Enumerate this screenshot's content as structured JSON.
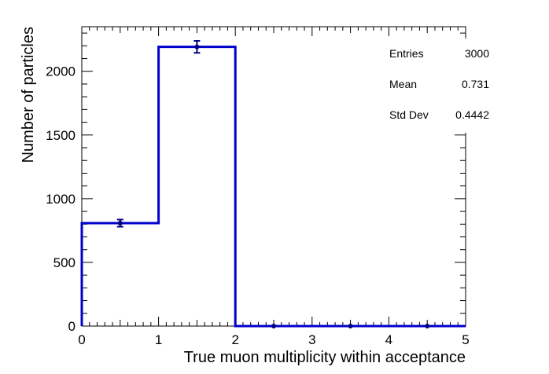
{
  "chart_data": {
    "type": "bar",
    "xlabel": "True muon multiplicity within acceptance",
    "ylabel": "Number of particles",
    "xlim": [
      0,
      5
    ],
    "ylim": [
      0,
      2350
    ],
    "x_ticks": [
      "0",
      "1",
      "2",
      "3",
      "4",
      "5"
    ],
    "y_ticks": [
      "0",
      "500",
      "1000",
      "1500",
      "2000"
    ],
    "bins": [
      {
        "low": 0,
        "high": 1,
        "value": 808,
        "error": 28
      },
      {
        "low": 1,
        "high": 2,
        "value": 2192,
        "error": 47
      },
      {
        "low": 2,
        "high": 3,
        "value": 0,
        "error": 0
      },
      {
        "low": 3,
        "high": 4,
        "value": 0,
        "error": 0
      },
      {
        "low": 4,
        "high": 5,
        "value": 0,
        "error": 0
      }
    ],
    "line_color": "#0000cc",
    "marker_color": "#000080",
    "stats": [
      {
        "label": "Entries",
        "value": "3000"
      },
      {
        "label": "Mean",
        "value": "0.731"
      },
      {
        "label": "Std Dev",
        "value": "0.4442"
      }
    ]
  }
}
